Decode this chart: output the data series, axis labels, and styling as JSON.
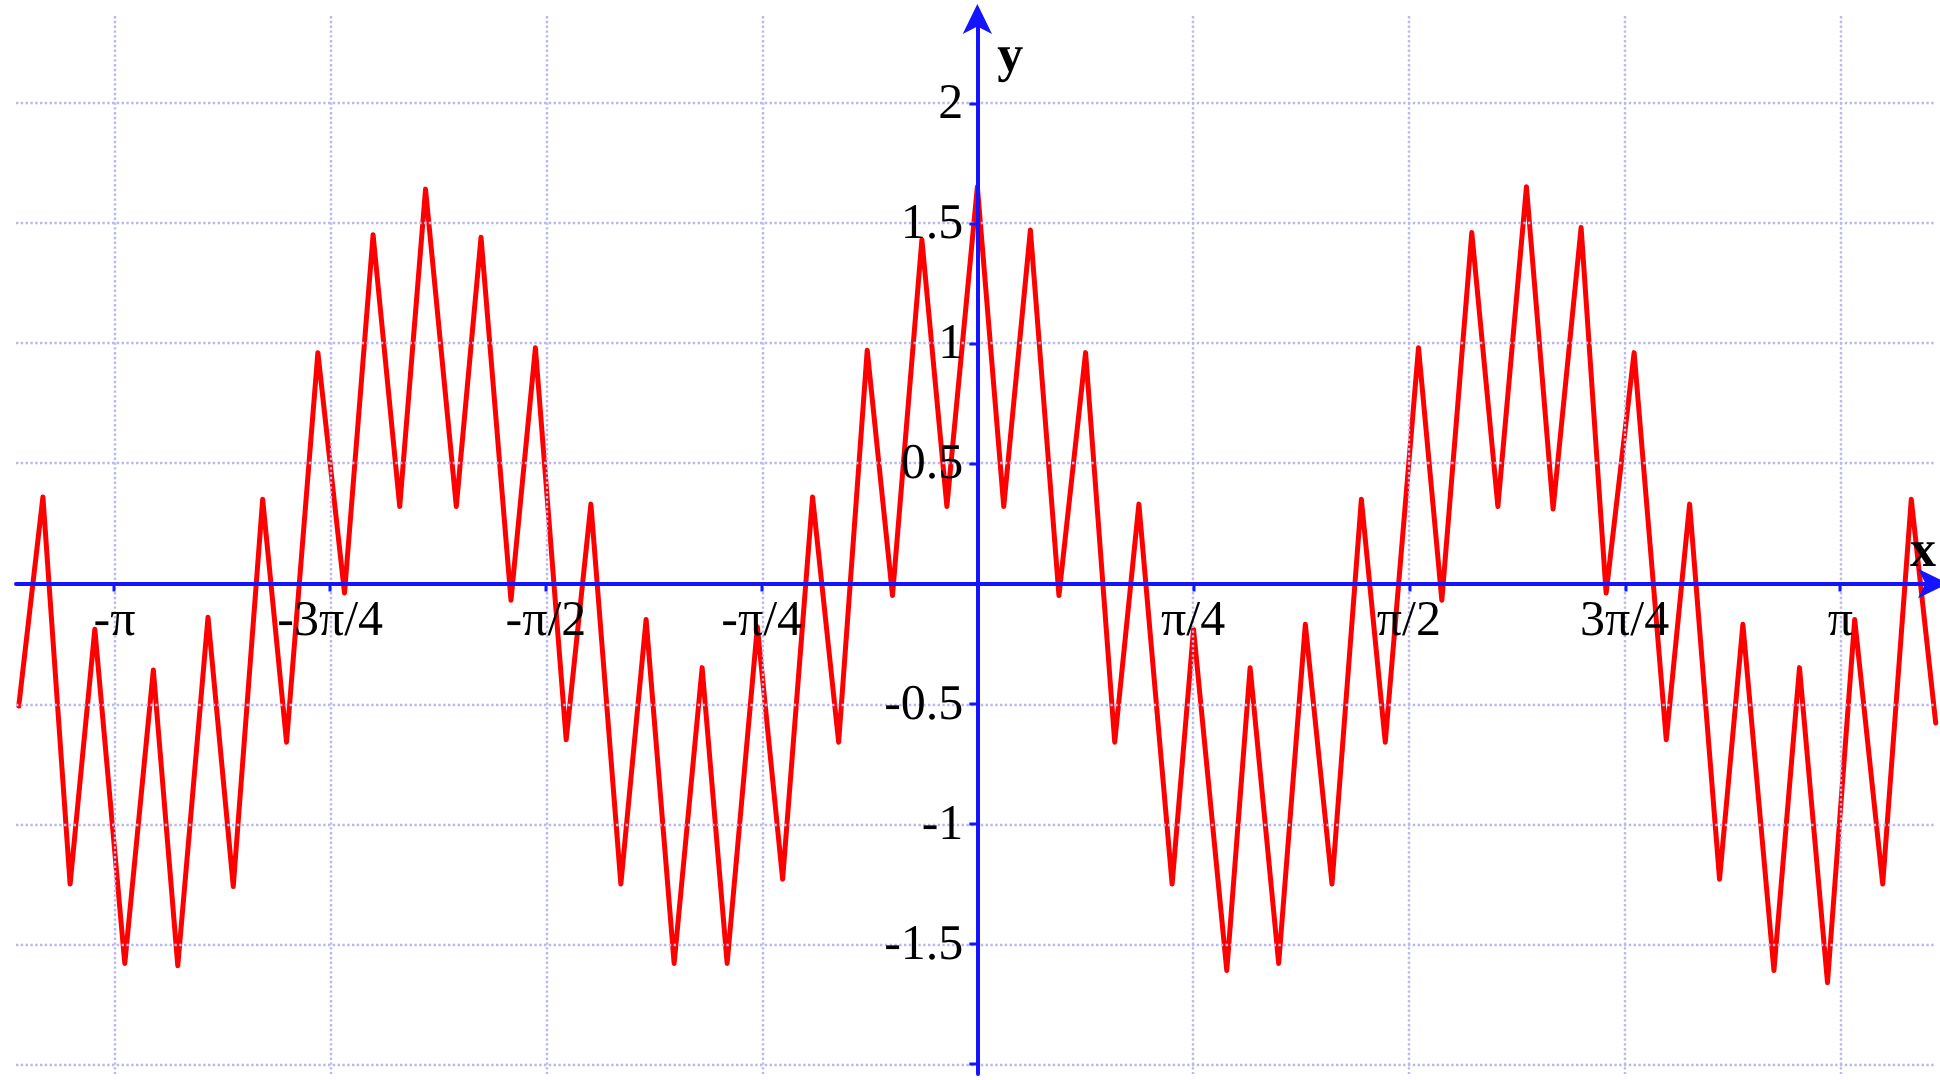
{
  "chart_data": {
    "type": "line",
    "xlabel": "x",
    "ylabel": "y",
    "color": "#ff0000",
    "marker": "none",
    "line_style": "solid",
    "grid": true,
    "xlim": [
      -3.5,
      3.49
    ],
    "ylim": [
      -2.04,
      2.36
    ],
    "xticks": [
      {
        "value": -3.14159,
        "label": "-π"
      },
      {
        "value": -2.35619,
        "label": "-3π/4"
      },
      {
        "value": -1.5708,
        "label": "-π/2"
      },
      {
        "value": -0.7854,
        "label": "-π/4"
      },
      {
        "value": 0.7854,
        "label": "π/4"
      },
      {
        "value": 1.5708,
        "label": "π/2"
      },
      {
        "value": 2.35619,
        "label": "3π/4"
      },
      {
        "value": 3.14159,
        "label": "π"
      }
    ],
    "yticks": [
      {
        "value": -2,
        "label": null
      },
      -1.5,
      -1,
      -0.5,
      0.5,
      1,
      1.5,
      2
    ],
    "x": [
      -3.49,
      -3.402,
      -3.303,
      -3.213,
      -3.104,
      -3.0,
      -2.911,
      -2.801,
      -2.709,
      -2.602,
      -2.515,
      -2.401,
      -2.304,
      -2.2,
      -2.103,
      -2.009,
      -1.897,
      -1.807,
      -1.698,
      -1.609,
      -1.497,
      -1.407,
      -1.298,
      -1.206,
      -1.104,
      -1.002,
      -0.911,
      -0.801,
      -0.709,
      -0.6,
      -0.505,
      -0.401,
      -0.309,
      -0.202,
      -0.111,
      0,
      0.096,
      0.193,
      0.297,
      0.394,
      0.5,
      0.588,
      0.709,
      0.787,
      0.908,
      0.993,
      1.097,
      1.194,
      1.291,
      1.398,
      1.485,
      1.606,
      1.691,
      1.8,
      1.895,
      1.999,
      2.096,
      2.198,
      2.289,
      2.391,
      2.508,
      2.593,
      2.702,
      2.787,
      2.9,
      2.993,
      3.095,
      3.194,
      3.296,
      3.4,
      3.489
    ],
    "values": [
      -0.51,
      0.36,
      -1.25,
      -0.19,
      -1.58,
      -0.36,
      -1.59,
      -0.14,
      -1.26,
      0.35,
      -0.66,
      0.96,
      -0.04,
      1.45,
      0.32,
      1.64,
      0.32,
      1.44,
      -0.07,
      0.98,
      -0.65,
      0.33,
      -1.25,
      -0.15,
      -1.58,
      -0.35,
      -1.58,
      -0.18,
      -1.23,
      0.36,
      -0.66,
      0.97,
      -0.05,
      1.43,
      0.32,
      1.65,
      0.32,
      1.47,
      -0.05,
      0.96,
      -0.66,
      0.33,
      -1.25,
      -0.19,
      -1.61,
      -0.35,
      -1.58,
      -0.17,
      -1.25,
      0.35,
      -0.66,
      0.98,
      -0.07,
      1.46,
      0.32,
      1.65,
      0.31,
      1.48,
      -0.04,
      0.96,
      -0.65,
      0.33,
      -1.23,
      -0.17,
      -1.61,
      -0.35,
      -1.66,
      -0.15,
      -1.25,
      0.35,
      -0.58
    ]
  }
}
